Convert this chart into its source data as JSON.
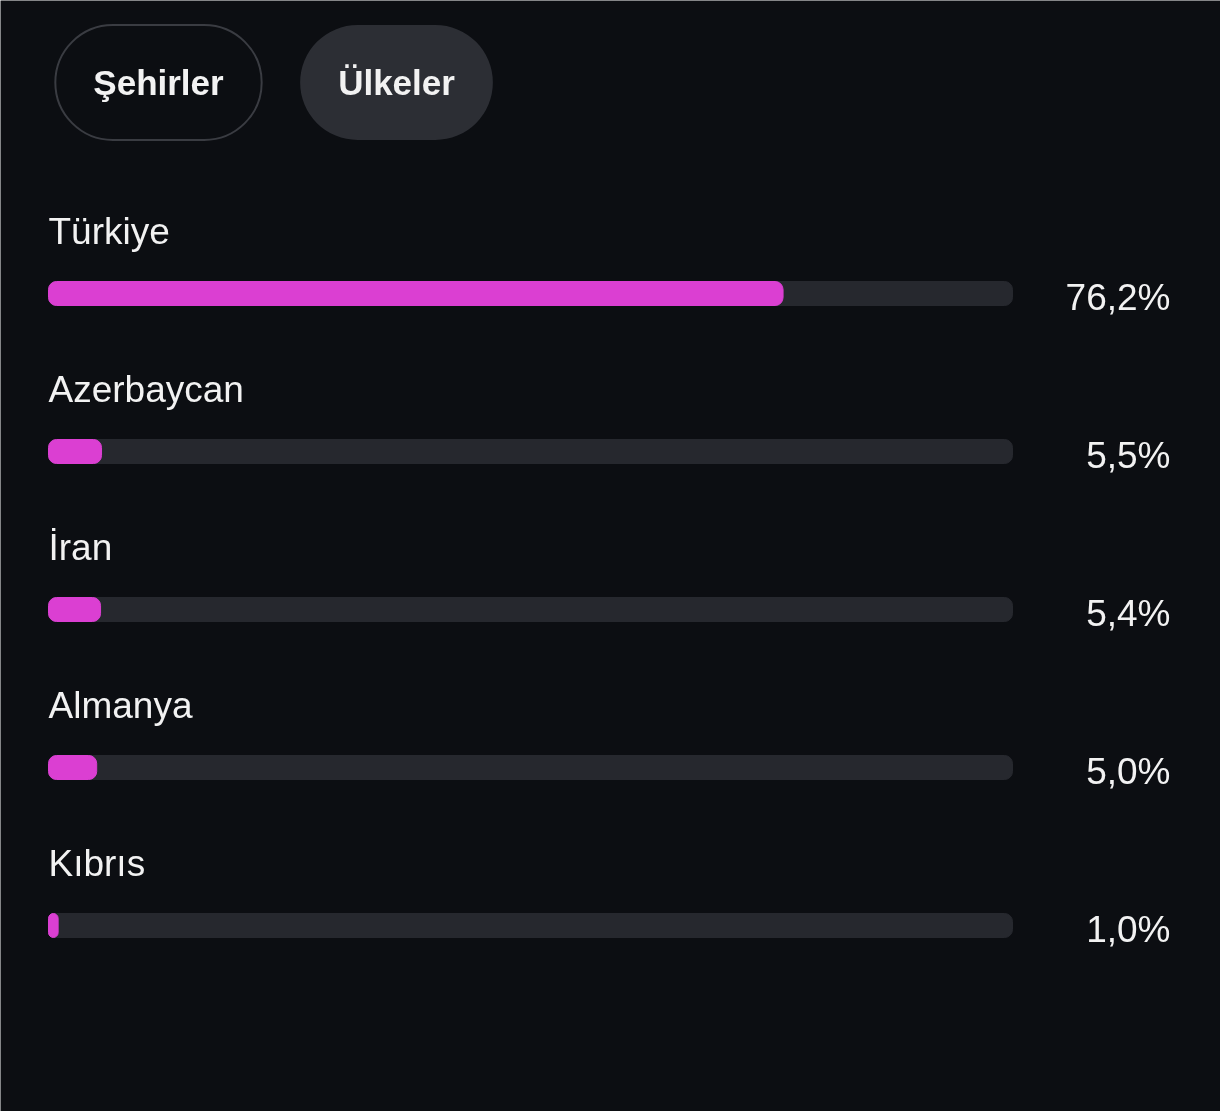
{
  "chart_data": {
    "type": "bar",
    "orientation": "horizontal",
    "categories": [
      "Türkiye",
      "Azerbaycan",
      "İran",
      "Almanya",
      "Kıbrıs"
    ],
    "values": [
      76.2,
      5.5,
      5.4,
      5.0,
      1.0
    ],
    "value_labels": [
      "76,2%",
      "5,5%",
      "5,4%",
      "5,0%",
      "1,0%"
    ],
    "color": "#db3fd2",
    "xlim": [
      0,
      100
    ],
    "tick_labels": false,
    "annotations": [
      "Şehirler",
      "Ülkeler"
    ]
  }
}
